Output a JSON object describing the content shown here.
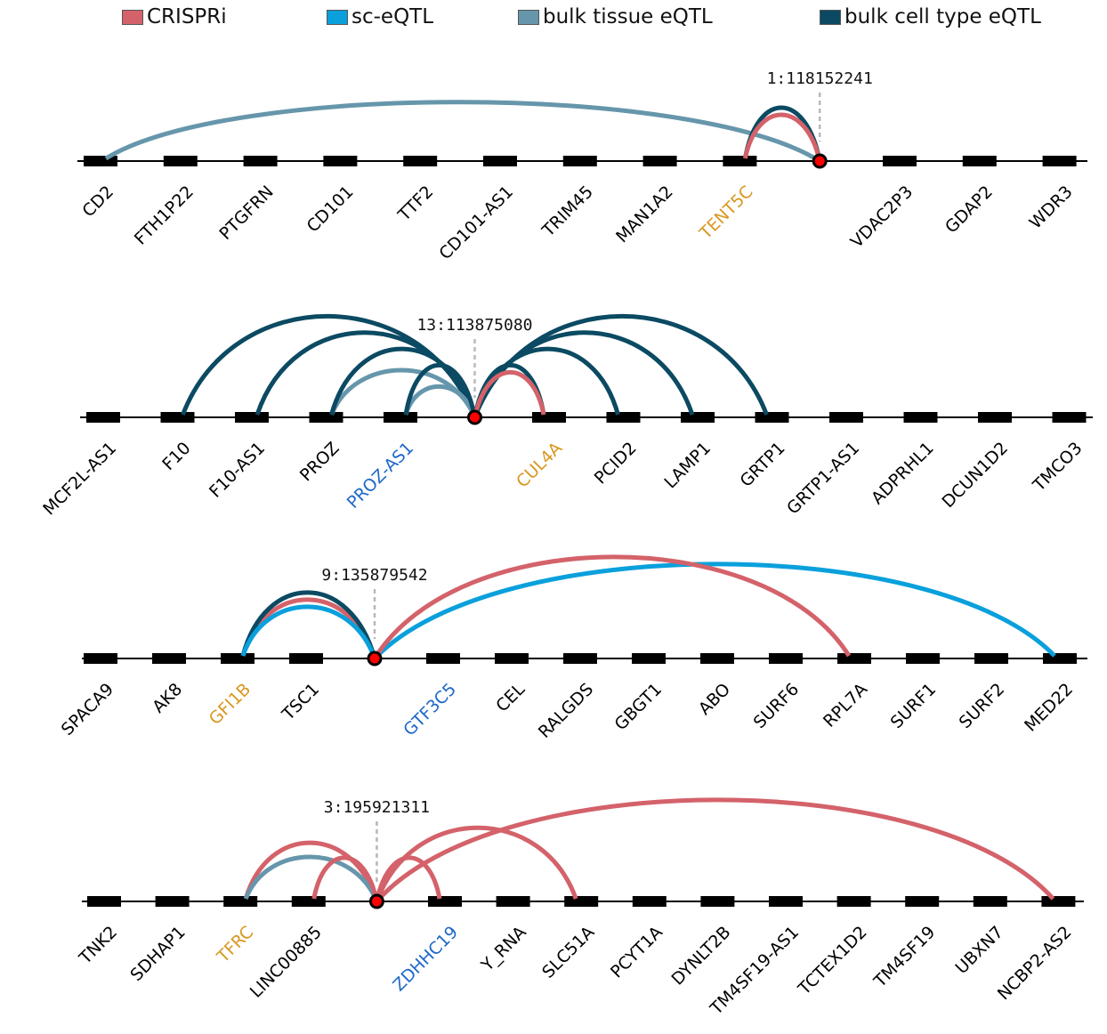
{
  "colors": {
    "CRISPRi": "#d4626a",
    "sc-eQTL": "#0aa0dc",
    "bulk tissue eQTL": "#6696ab",
    "bulk cell type eQTL": "#0b4a62",
    "gene_default": "#000000",
    "gene_highlight_orange": "#d99720",
    "gene_highlight_blue": "#1e68c8",
    "snp_fill": "#ff0000",
    "snp_marker_line": "#b8b8b8"
  },
  "legend": [
    {
      "key": "CRISPRi",
      "label": "CRISPRi"
    },
    {
      "key": "sc-eQTL",
      "label": "sc-eQTL"
    },
    {
      "key": "bulk tissue eQTL",
      "label": "bulk tissue eQTL"
    },
    {
      "key": "bulk cell type eQTL",
      "label": "bulk cell type eQTL"
    }
  ],
  "panels": [
    {
      "snp": "1:118152241",
      "snp_index": 9,
      "loci": [
        "CD2",
        "FTH1P22",
        "PTGFRN",
        "CD101",
        "TTF2",
        "CD101-AS1",
        "TRIM45",
        "MAN1A2",
        "TENT5C",
        "__SNP__",
        "VDAC2P3",
        "GDAP2",
        "WDR3"
      ],
      "highlight": {
        "TENT5C": "orange"
      },
      "links": [
        {
          "gene": "CD2",
          "type": "bulk tissue eQTL"
        },
        {
          "gene": "TENT5C",
          "type": "bulk cell type eQTL"
        },
        {
          "gene": "TENT5C",
          "type": "CRISPRi"
        }
      ]
    },
    {
      "snp": "13:113875080",
      "snp_index": 5,
      "loci": [
        "MCF2L-AS1",
        "F10",
        "F10-AS1",
        "PROZ",
        "PROZ-AS1",
        "__SNP__",
        "CUL4A",
        "PCID2",
        "LAMP1",
        "GRTP1",
        "GRTP1-AS1",
        "ADPRHL1",
        "DCUN1D2",
        "TMCO3"
      ],
      "highlight": {
        "PROZ-AS1": "blue",
        "CUL4A": "orange"
      },
      "links": [
        {
          "gene": "F10",
          "type": "bulk cell type eQTL"
        },
        {
          "gene": "F10-AS1",
          "type": "bulk cell type eQTL"
        },
        {
          "gene": "PROZ",
          "type": "bulk tissue eQTL"
        },
        {
          "gene": "PROZ",
          "type": "bulk cell type eQTL"
        },
        {
          "gene": "PROZ-AS1",
          "type": "bulk tissue eQTL"
        },
        {
          "gene": "PROZ-AS1",
          "type": "bulk cell type eQTL"
        },
        {
          "gene": "CUL4A",
          "type": "bulk cell type eQTL"
        },
        {
          "gene": "CUL4A",
          "type": "CRISPRi"
        },
        {
          "gene": "PCID2",
          "type": "bulk cell type eQTL"
        },
        {
          "gene": "LAMP1",
          "type": "bulk cell type eQTL"
        },
        {
          "gene": "GRTP1",
          "type": "bulk cell type eQTL"
        }
      ]
    },
    {
      "snp": "9:135879542",
      "snp_index": 4,
      "loci": [
        "SPACA9",
        "AK8",
        "GFI1B",
        "TSC1",
        "__SNP__",
        "GTF3C5",
        "CEL",
        "RALGDS",
        "GBGT1",
        "ABO",
        "SURF6",
        "RPL7A",
        "SURF1",
        "SURF2",
        "MED22"
      ],
      "highlight": {
        "GFI1B": "orange",
        "GTF3C5": "blue"
      },
      "links": [
        {
          "gene": "GFI1B",
          "type": "CRISPRi"
        },
        {
          "gene": "GFI1B",
          "type": "bulk cell type eQTL"
        },
        {
          "gene": "GFI1B",
          "type": "sc-eQTL"
        },
        {
          "gene": "RPL7A",
          "type": "CRISPRi"
        },
        {
          "gene": "MED22",
          "type": "sc-eQTL"
        }
      ]
    },
    {
      "snp": "3:195921311",
      "snp_index": 4,
      "loci": [
        "TNK2",
        "SDHAP1",
        "TFRC",
        "LINC00885",
        "__SNP__",
        "ZDHHC19",
        "Y_RNA",
        "SLC51A",
        "PCYT1A",
        "DYNLT2B",
        "TM4SF19-AS1",
        "TCTEX1D2",
        "TM4SF19",
        "UBXN7",
        "NCBP2-AS2"
      ],
      "highlight": {
        "TFRC": "orange",
        "ZDHHC19": "blue"
      },
      "links": [
        {
          "gene": "TFRC",
          "type": "CRISPRi"
        },
        {
          "gene": "TFRC",
          "type": "bulk tissue eQTL"
        },
        {
          "gene": "LINC00885",
          "type": "CRISPRi"
        },
        {
          "gene": "ZDHHC19",
          "type": "CRISPRi"
        },
        {
          "gene": "SLC51A",
          "type": "CRISPRi"
        },
        {
          "gene": "NCBP2-AS2",
          "type": "CRISPRi"
        }
      ]
    }
  ]
}
